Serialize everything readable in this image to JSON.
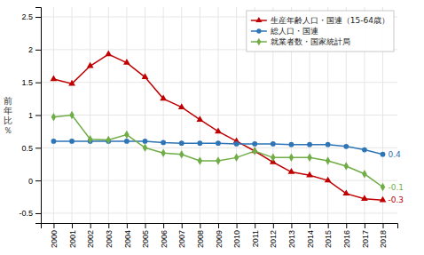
{
  "chart_data": {
    "type": "line",
    "ylabel": "前\n年\n比\n％",
    "x": [
      2000,
      2001,
      2002,
      2003,
      2004,
      2005,
      2006,
      2007,
      2008,
      2009,
      2010,
      2011,
      2012,
      2013,
      2014,
      2015,
      2016,
      2017,
      2018
    ],
    "xlim": [
      1999.3,
      2018.8
    ],
    "xticks": [
      2000,
      2001,
      2002,
      2003,
      2004,
      2005,
      2006,
      2007,
      2008,
      2009,
      2010,
      2011,
      2012,
      2013,
      2014,
      2015,
      2016,
      2017,
      2018
    ],
    "ylim": [
      -0.65,
      2.65
    ],
    "yticks": [
      -0.5,
      0,
      0.5,
      1,
      1.5,
      2,
      2.5
    ],
    "series": [
      {
        "name": "生産年齢人口・国連（15-64歳）",
        "color": "#C00000",
        "marker": "triangle",
        "values": [
          1.55,
          1.48,
          1.75,
          1.93,
          1.8,
          1.58,
          1.25,
          1.12,
          0.93,
          0.75,
          0.6,
          0.45,
          0.28,
          0.13,
          0.08,
          0.0,
          -0.2,
          -0.28,
          -0.3
        ]
      },
      {
        "name": "総人口・国連",
        "color": "#2E75B6",
        "marker": "circle",
        "values": [
          0.6,
          0.6,
          0.6,
          0.6,
          0.6,
          0.6,
          0.58,
          0.57,
          0.57,
          0.57,
          0.56,
          0.56,
          0.56,
          0.55,
          0.55,
          0.55,
          0.52,
          0.47,
          0.4
        ]
      },
      {
        "name": "就業者数・国家統計局",
        "color": "#70AD47",
        "marker": "diamond",
        "values": [
          0.97,
          1.0,
          0.63,
          0.62,
          0.7,
          0.5,
          0.42,
          0.4,
          0.3,
          0.3,
          0.35,
          0.45,
          0.35,
          0.35,
          0.35,
          0.3,
          0.22,
          0.1,
          -0.1
        ]
      }
    ],
    "annotations": [
      {
        "text": "0.4",
        "x": 2018,
        "y": 0.4,
        "color": "#2E75B6"
      },
      {
        "text": "-0.1",
        "x": 2018,
        "y": -0.1,
        "color": "#70AD47"
      },
      {
        "text": "-0.3",
        "x": 2018,
        "y": -0.3,
        "color": "#C00000"
      }
    ],
    "grid": true,
    "legend": "upper right"
  }
}
